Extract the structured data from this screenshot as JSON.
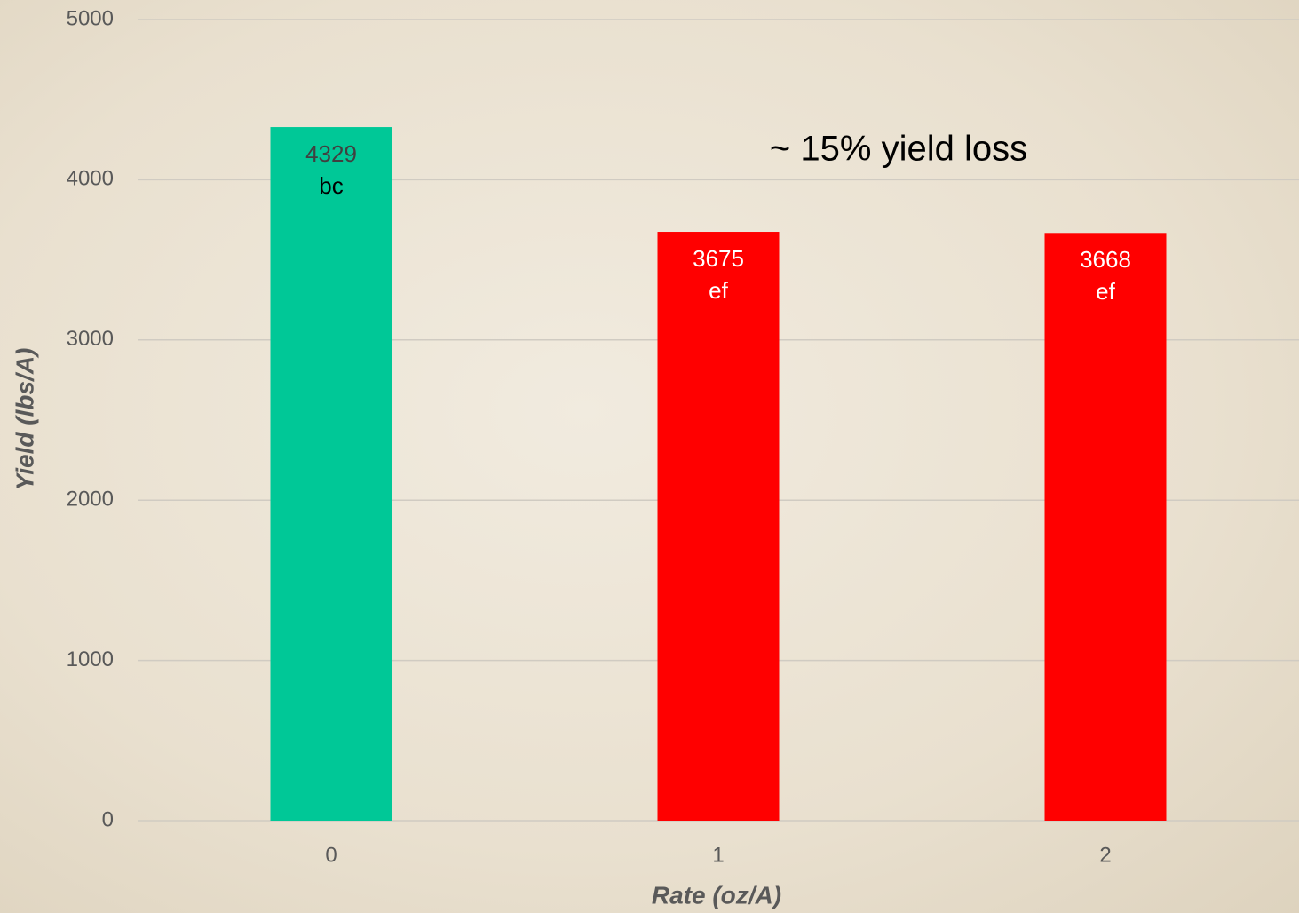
{
  "chart_data": {
    "type": "bar",
    "categories": [
      "0",
      "1",
      "2"
    ],
    "values": [
      4329,
      3675,
      3668
    ],
    "letters": [
      "bc",
      "ef",
      "ef"
    ],
    "colors": [
      "#00c897",
      "#ff0000",
      "#ff0000"
    ],
    "xlabel": "Rate (oz/A)",
    "ylabel": "Yield (lbs/A)",
    "annotation": "~ 15% yield loss",
    "ylim": [
      0,
      5000
    ],
    "yticks": [
      0,
      1000,
      2000,
      3000,
      4000,
      5000
    ],
    "grid": true
  }
}
